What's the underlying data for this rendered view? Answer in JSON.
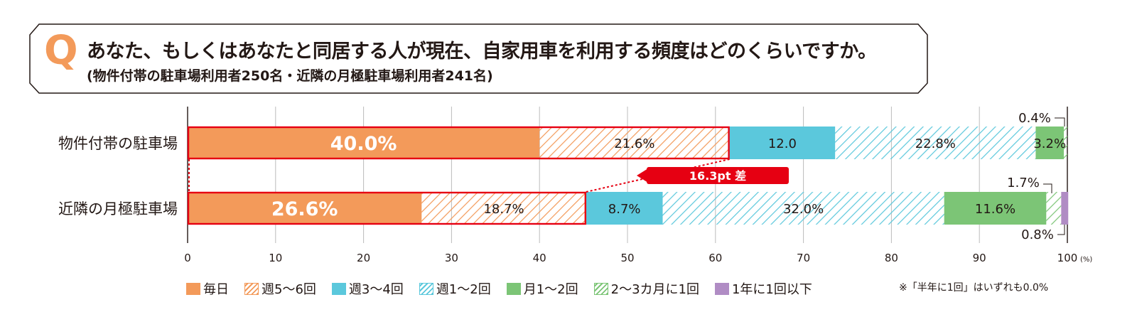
{
  "question": {
    "mark": "Q",
    "title": "あなた、もしくはあなたと同居する人が現在、自家用車を利用する頻度はどのくらいですか。",
    "subtitle": "(物件付帯の駐車場利用者250名・近隣の月極駐車場利用者241名)"
  },
  "chart_data": {
    "type": "bar",
    "orientation": "horizontal",
    "stacked": true,
    "categories": [
      "物件付帯の駐車場",
      "近隣の月極駐車場"
    ],
    "series": [
      {
        "name": "毎日",
        "color": "#f39a5a",
        "pattern": "solid",
        "values": [
          40.0,
          26.6
        ],
        "labels": [
          "40.0%",
          "26.6%"
        ]
      },
      {
        "name": "週5～6回",
        "color": "#f39a5a",
        "pattern": "hatch",
        "values": [
          21.6,
          18.7
        ],
        "labels": [
          "21.6%",
          "18.7%"
        ]
      },
      {
        "name": "週3～4回",
        "color": "#5bc8dc",
        "pattern": "solid",
        "values": [
          12.0,
          8.7
        ],
        "labels": [
          "12.0",
          "8.7%"
        ]
      },
      {
        "name": "週1～2回",
        "color": "#5bc8dc",
        "pattern": "hatch",
        "values": [
          22.8,
          32.0
        ],
        "labels": [
          "22.8%",
          "32.0%"
        ]
      },
      {
        "name": "月1～2回",
        "color": "#7cc576",
        "pattern": "solid",
        "values": [
          3.2,
          11.6
        ],
        "labels": [
          "3.2%",
          "11.6%"
        ]
      },
      {
        "name": "2～3カ月に1回",
        "color": "#7cc576",
        "pattern": "hatch",
        "values": [
          0.4,
          1.7
        ],
        "labels": [
          "0.4%",
          "1.7%"
        ]
      },
      {
        "name": "1年に1回以下",
        "color": "#b08cc4",
        "pattern": "solid",
        "values": [
          0.0,
          0.8
        ],
        "labels": [
          "",
          "0.8%"
        ]
      }
    ],
    "xlim": [
      0,
      100
    ],
    "ticks": [
      0,
      10,
      20,
      30,
      40,
      50,
      60,
      70,
      80,
      90,
      100
    ],
    "x_unit": "(%)",
    "grid": true,
    "legend_position": "bottom",
    "annotation": {
      "text": "16.3pt 差",
      "color": "#e60012"
    },
    "footnote": "※「半年に1回」はいずれも0.0%"
  }
}
